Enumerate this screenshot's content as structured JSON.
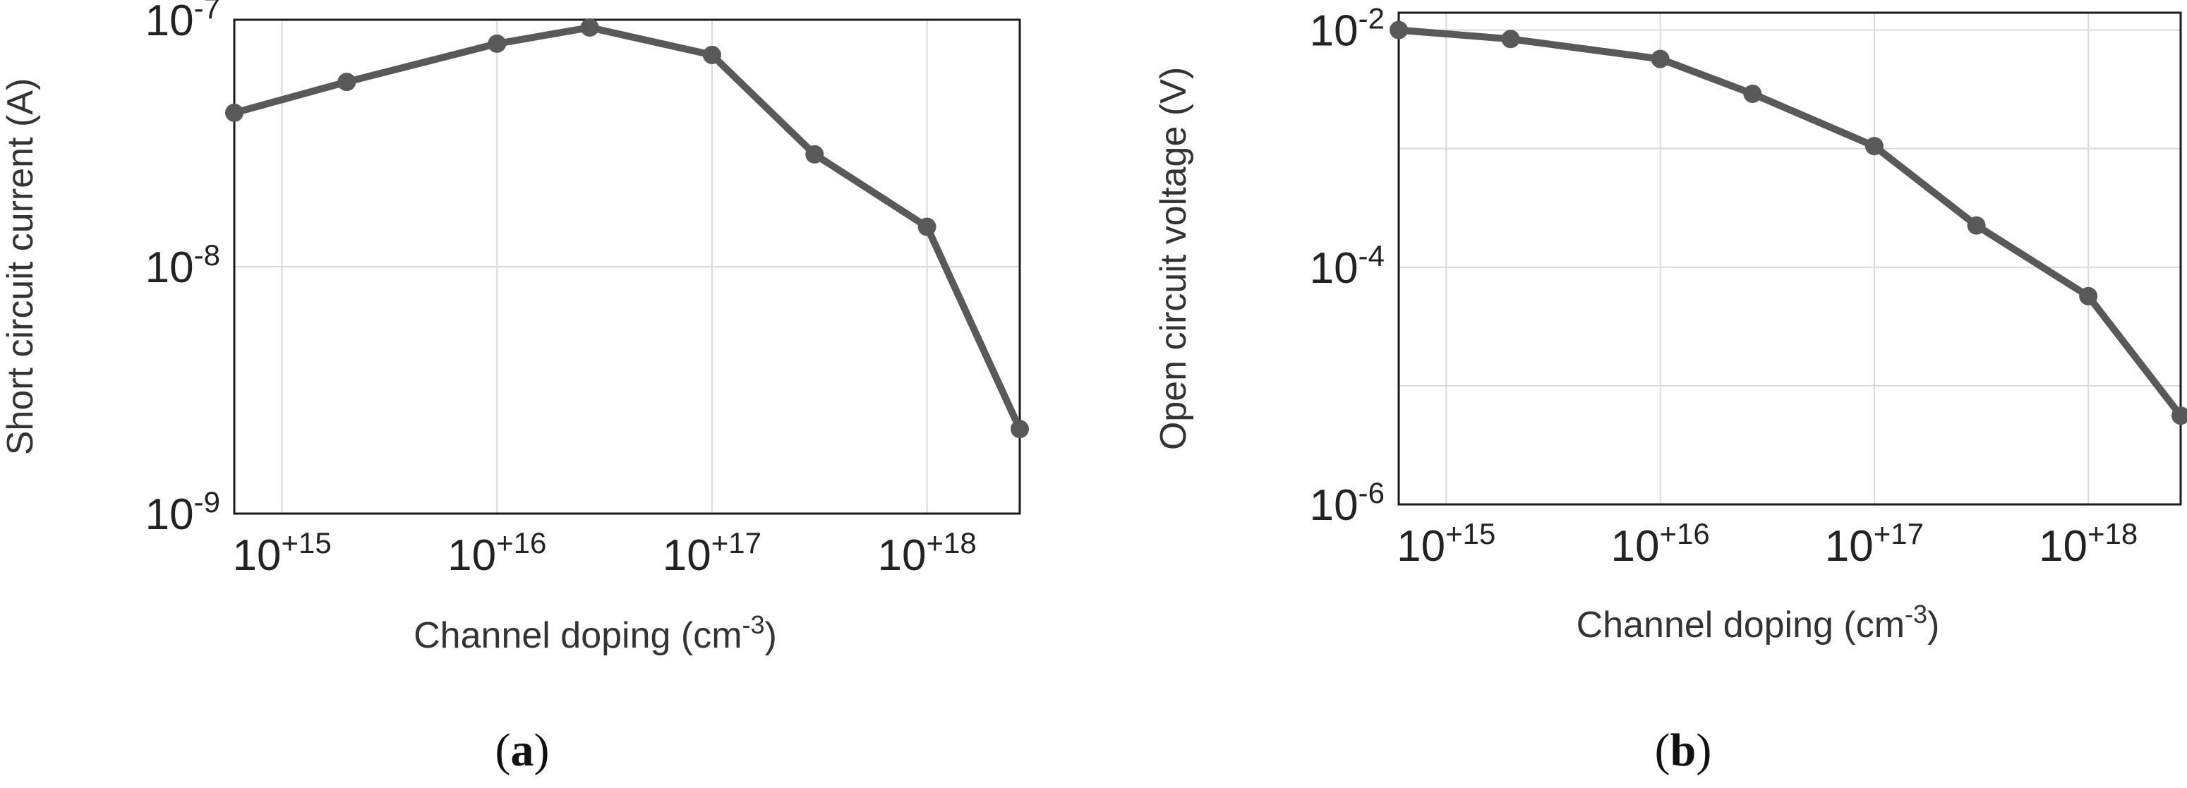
{
  "chart_data": [
    {
      "type": "line",
      "panel_label": "(a)",
      "panel_letter": "a",
      "xscale": "log",
      "yscale": "log",
      "xlim": [
        600000000000000.0,
        2.7e+18
      ],
      "ylim": [
        1e-09,
        1e-07
      ],
      "xlabel": "Channel doping  (cm",
      "xlabel_exp": "-3",
      "xlabel_end": ")",
      "ylabel": "Short circuit current  (A)",
      "grid": true,
      "color": "#595959",
      "x_ticks": [
        {
          "value": 1000000000000000.0,
          "base": "10",
          "exp": "+15"
        },
        {
          "value": 1e+16,
          "base": "10",
          "exp": "+16"
        },
        {
          "value": 1e+17,
          "base": "10",
          "exp": "+17"
        },
        {
          "value": 1e+18,
          "base": "10",
          "exp": "+18"
        }
      ],
      "y_ticks": [
        {
          "value": 1e-09,
          "base": "10",
          "exp": "-9"
        },
        {
          "value": 1e-08,
          "base": "10",
          "exp": "-8"
        },
        {
          "value": 1e-07,
          "base": "10",
          "exp": "-7"
        }
      ],
      "y_gridlines": [
        1e-08,
        1e-07
      ],
      "x": [
        600000000000000.0,
        2000000000000000.0,
        1e+16,
        2.7e+16,
        1e+17,
        3e+17,
        1e+18,
        2.7e+18
      ],
      "y": [
        4.2e-08,
        5.6e-08,
        8e-08,
        9.3e-08,
        7.2e-08,
        2.85e-08,
        1.45e-08,
        2.2e-09
      ]
    },
    {
      "type": "line",
      "panel_label": "(b)",
      "panel_letter": "b",
      "xscale": "log",
      "yscale": "log",
      "xlim": [
        600000000000000.0,
        2.7e+18
      ],
      "ylim": [
        1e-06,
        0.014
      ],
      "xlabel": "Channel doping  (cm",
      "xlabel_exp": "-3",
      "xlabel_end": ")",
      "ylabel": "Open circuit voltage  (V)",
      "grid": true,
      "color": "#595959",
      "x_ticks": [
        {
          "value": 1000000000000000.0,
          "base": "10",
          "exp": "+15"
        },
        {
          "value": 1e+16,
          "base": "10",
          "exp": "+16"
        },
        {
          "value": 1e+17,
          "base": "10",
          "exp": "+17"
        },
        {
          "value": 1e+18,
          "base": "10",
          "exp": "+18"
        }
      ],
      "y_ticks": [
        {
          "value": 1e-06,
          "base": "10",
          "exp": "-6"
        },
        {
          "value": 0.0001,
          "base": "10",
          "exp": "-4"
        },
        {
          "value": 0.01,
          "base": "10",
          "exp": "-2"
        }
      ],
      "y_gridlines": [
        1e-05,
        0.0001,
        0.001,
        0.01
      ],
      "x": [
        600000000000000.0,
        2000000000000000.0,
        1e+16,
        2.7e+16,
        1e+17,
        3e+17,
        1e+18,
        2.7e+18
      ],
      "y": [
        0.01,
        0.0084,
        0.0057,
        0.0029,
        0.00105,
        0.000225,
        5.7e-05,
        5.6e-06
      ]
    }
  ]
}
